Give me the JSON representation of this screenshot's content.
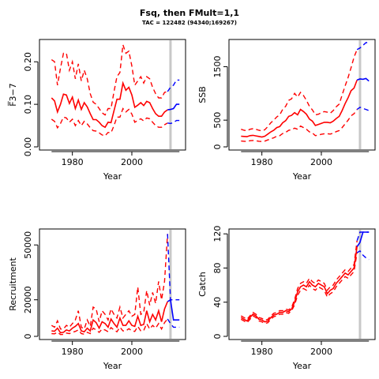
{
  "figure": {
    "title": "Fsq, then FMult=1,1",
    "subtitle": "TAC = 122482 (94340;169267)"
  },
  "colors": {
    "historical": "#ff0000",
    "projection": "#0000ff",
    "marker": "#c8c8c8"
  },
  "chart_data": [
    {
      "type": "line",
      "ylabel": "F̅3−7",
      "xlabel": "Year",
      "xlim": [
        1970,
        2017
      ],
      "ylim": [
        0,
        0.245
      ],
      "xticks": [
        1980,
        2000
      ],
      "yticks": [
        0,
        0.1,
        0.2
      ],
      "ytick_labels": [
        "0.00",
        "0.10",
        "0.20"
      ],
      "vline_year": 2013,
      "x": [
        1973,
        1974,
        1975,
        1976,
        1977,
        1978,
        1979,
        1980,
        1981,
        1982,
        1983,
        1984,
        1985,
        1986,
        1987,
        1988,
        1989,
        1990,
        1991,
        1992,
        1993,
        1994,
        1995,
        1996,
        1997,
        1998,
        1999,
        2000,
        2001,
        2002,
        2003,
        2004,
        2005,
        2006,
        2007,
        2008,
        2009,
        2010,
        2011,
        2012
      ],
      "series": [
        {
          "values": [
            0.115,
            0.108,
            0.082,
            0.1,
            0.124,
            0.122,
            0.102,
            0.117,
            0.09,
            0.11,
            0.088,
            0.104,
            0.094,
            0.078,
            0.064,
            0.064,
            0.058,
            0.05,
            0.046,
            0.058,
            0.057,
            0.085,
            0.112,
            0.112,
            0.15,
            0.133,
            0.14,
            0.122,
            0.093,
            0.098,
            0.104,
            0.097,
            0.107,
            0.104,
            0.09,
            0.078,
            0.072,
            0.072,
            0.082,
            0.087
          ],
          "role": "estimate"
        },
        {
          "values": [
            0.205,
            0.2,
            0.145,
            0.185,
            0.22,
            0.22,
            0.18,
            0.2,
            0.16,
            0.195,
            0.155,
            0.18,
            0.16,
            0.125,
            0.105,
            0.1,
            0.09,
            0.08,
            0.075,
            0.09,
            0.09,
            0.13,
            0.165,
            0.175,
            0.24,
            0.22,
            0.225,
            0.19,
            0.145,
            0.155,
            0.165,
            0.15,
            0.165,
            0.16,
            0.14,
            0.125,
            0.115,
            0.115,
            0.128,
            0.13
          ],
          "role": "upper"
        },
        {
          "values": [
            0.065,
            0.06,
            0.045,
            0.055,
            0.07,
            0.068,
            0.058,
            0.065,
            0.05,
            0.062,
            0.05,
            0.06,
            0.054,
            0.045,
            0.038,
            0.037,
            0.033,
            0.028,
            0.026,
            0.034,
            0.033,
            0.05,
            0.07,
            0.07,
            0.09,
            0.082,
            0.088,
            0.077,
            0.058,
            0.062,
            0.066,
            0.061,
            0.068,
            0.066,
            0.058,
            0.05,
            0.046,
            0.046,
            0.052,
            0.056
          ],
          "role": "lower"
        }
      ],
      "projection": {
        "x": [
          2012,
          2013,
          2014,
          2015,
          2016
        ],
        "values": [
          0.087,
          0.088,
          0.09,
          0.1,
          0.1
        ],
        "upper": [
          0.13,
          0.14,
          0.145,
          0.157,
          0.157
        ],
        "lower": [
          0.056,
          0.055,
          0.057,
          0.062,
          0.062
        ]
      }
    },
    {
      "type": "line",
      "ylabel": "SSB",
      "xlabel": "Year",
      "xlim": [
        1970,
        2017
      ],
      "ylim": [
        0,
        1950
      ],
      "xticks": [
        1980,
        2000
      ],
      "yticks": [
        0,
        500,
        1500
      ],
      "ytick_labels": [
        "0",
        "500",
        "1500"
      ],
      "vline_year": 2013,
      "x": [
        1973,
        1974,
        1975,
        1976,
        1977,
        1978,
        1979,
        1980,
        1981,
        1982,
        1983,
        1984,
        1985,
        1986,
        1987,
        1988,
        1989,
        1990,
        1991,
        1992,
        1993,
        1994,
        1995,
        1996,
        1997,
        1998,
        1999,
        2000,
        2001,
        2002,
        2003,
        2004,
        2005,
        2006,
        2007,
        2008,
        2009,
        2010,
        2011,
        2012
      ],
      "series": [
        {
          "values": [
            200,
            195,
            190,
            210,
            215,
            205,
            195,
            185,
            200,
            240,
            280,
            310,
            360,
            380,
            450,
            490,
            570,
            590,
            640,
            600,
            700,
            660,
            610,
            520,
            480,
            400,
            420,
            440,
            460,
            460,
            450,
            480,
            530,
            570,
            680,
            810,
            920,
            1050,
            1100,
            1250
          ],
          "role": "estimate"
        },
        {
          "values": [
            330,
            310,
            300,
            330,
            340,
            330,
            310,
            300,
            320,
            380,
            450,
            500,
            560,
            600,
            700,
            760,
            870,
            900,
            1000,
            930,
            1020,
            960,
            870,
            760,
            690,
            600,
            610,
            640,
            660,
            650,
            630,
            680,
            750,
            800,
            970,
            1140,
            1300,
            1480,
            1680,
            1820
          ],
          "role": "upper"
        },
        {
          "values": [
            110,
            105,
            100,
            115,
            120,
            115,
            105,
            100,
            108,
            130,
            150,
            170,
            200,
            210,
            250,
            270,
            310,
            320,
            350,
            330,
            390,
            360,
            330,
            280,
            260,
            210,
            220,
            235,
            245,
            245,
            240,
            255,
            285,
            305,
            360,
            430,
            500,
            580,
            620,
            700
          ],
          "role": "lower"
        }
      ],
      "projection": {
        "x": [
          2012,
          2013,
          2014,
          2015,
          2016
        ],
        "values": [
          1250,
          1270,
          1265,
          1280,
          1230
        ],
        "upper": [
          1820,
          1850,
          1900,
          1950,
          1950
        ],
        "lower": [
          700,
          740,
          720,
          700,
          680
        ]
      }
    },
    {
      "type": "line",
      "ylabel": "Recruitment",
      "xlabel": "Year",
      "xlim": [
        1970,
        2017
      ],
      "ylim": [
        0,
        57000
      ],
      "xticks": [
        1980,
        2000
      ],
      "yticks": [
        0,
        20000,
        50000
      ],
      "ytick_labels": [
        "0",
        "20000",
        "50000"
      ],
      "vline_year": 2013,
      "x": [
        1973,
        1974,
        1975,
        1976,
        1977,
        1978,
        1979,
        1980,
        1981,
        1982,
        1983,
        1984,
        1985,
        1986,
        1987,
        1988,
        1989,
        1990,
        1991,
        1992,
        1993,
        1994,
        1995,
        1996,
        1997,
        1998,
        1999,
        2000,
        2001,
        2002,
        2003,
        2004,
        2005,
        2006,
        2007,
        2008,
        2009,
        2010,
        2011,
        2012
      ],
      "series": [
        {
          "values": [
            3000,
            2800,
            4500,
            2000,
            2200,
            3500,
            3000,
            4500,
            5500,
            7000,
            3000,
            2500,
            4500,
            3000,
            9000,
            7500,
            4500,
            8000,
            7000,
            5000,
            9500,
            7000,
            5000,
            10000,
            6000,
            6000,
            8500,
            6000,
            5500,
            11000,
            6000,
            6500,
            14000,
            8000,
            12000,
            9000,
            14000,
            8000,
            15000,
            19000
          ],
          "role": "estimate"
        },
        {
          "values": [
            6000,
            5000,
            8500,
            4000,
            4000,
            6000,
            5000,
            7000,
            9000,
            14000,
            5000,
            4000,
            9000,
            5500,
            16000,
            15000,
            8000,
            14000,
            12000,
            9000,
            15000,
            12000,
            10000,
            16000,
            10000,
            12000,
            14000,
            11000,
            12000,
            27000,
            12000,
            13000,
            25000,
            17000,
            24000,
            18000,
            30000,
            20000,
            30000,
            56000
          ],
          "role": "upper"
        },
        {
          "values": [
            1500,
            1400,
            2200,
            1000,
            1100,
            1800,
            1500,
            2200,
            2700,
            3500,
            1500,
            1200,
            2200,
            1500,
            4500,
            3500,
            2200,
            4000,
            3500,
            2500,
            4800,
            3500,
            2500,
            5000,
            3000,
            3000,
            4200,
            3000,
            2700,
            5500,
            3000,
            3200,
            7000,
            4000,
            6000,
            4500,
            7000,
            4000,
            7500,
            9500
          ],
          "role": "lower"
        }
      ],
      "projection": {
        "x": [
          2012,
          2013,
          2014,
          2015,
          2016
        ],
        "values": [
          19000,
          20000,
          9000,
          9000,
          9000
        ],
        "upper": [
          56000,
          20000,
          20000,
          20000,
          20000
        ],
        "lower": [
          9500,
          7000,
          5000,
          5000,
          5000
        ]
      }
    },
    {
      "type": "line",
      "ylabel": "Catch",
      "xlabel": "Year",
      "xlim": [
        1970,
        2017
      ],
      "ylim": [
        0,
        122
      ],
      "xticks": [
        1980,
        2000
      ],
      "yticks": [
        0,
        40,
        80,
        120
      ],
      "ytick_labels": [
        "0",
        "40",
        "80",
        "120"
      ],
      "vline_year": 2013,
      "x": [
        1973,
        1974,
        1975,
        1976,
        1977,
        1978,
        1979,
        1980,
        1981,
        1982,
        1983,
        1984,
        1985,
        1986,
        1987,
        1988,
        1989,
        1990,
        1991,
        1992,
        1993,
        1994,
        1995,
        1996,
        1997,
        1998,
        1999,
        2000,
        2001,
        2002,
        2003,
        2004,
        2005,
        2006,
        2007,
        2008,
        2009,
        2010,
        2011,
        2012
      ],
      "series": [
        {
          "values": [
            22,
            20,
            18,
            22,
            26,
            24,
            20,
            19,
            17,
            18,
            22,
            25,
            26,
            28,
            28,
            30,
            29,
            32,
            40,
            52,
            58,
            60,
            58,
            64,
            60,
            58,
            62,
            60,
            58,
            50,
            54,
            56,
            62,
            66,
            70,
            74,
            72,
            76,
            80,
            105
          ],
          "role": "estimate"
        },
        {
          "values": [
            24,
            22,
            20,
            24,
            28,
            26,
            22,
            21,
            19,
            20,
            24,
            27,
            28,
            30,
            30,
            32,
            31,
            34,
            43,
            56,
            62,
            64,
            62,
            68,
            64,
            62,
            66,
            64,
            62,
            54,
            58,
            60,
            66,
            70,
            74,
            78,
            76,
            80,
            84,
            112
          ],
          "role": "upper"
        },
        {
          "values": [
            20,
            18,
            16,
            20,
            24,
            22,
            18,
            17,
            15,
            16,
            20,
            23,
            24,
            26,
            26,
            28,
            27,
            30,
            37,
            48,
            54,
            56,
            54,
            60,
            56,
            54,
            58,
            56,
            54,
            46,
            50,
            52,
            58,
            62,
            66,
            70,
            68,
            72,
            76,
            98
          ],
          "role": "lower"
        }
      ],
      "projection": {
        "x": [
          2012,
          2013,
          2014,
          2015,
          2016
        ],
        "values": [
          105,
          110,
          122,
          122,
          122
        ],
        "upper": [
          112,
          122,
          122,
          122,
          122
        ],
        "lower": [
          98,
          100,
          95,
          92,
          90
        ]
      }
    }
  ]
}
